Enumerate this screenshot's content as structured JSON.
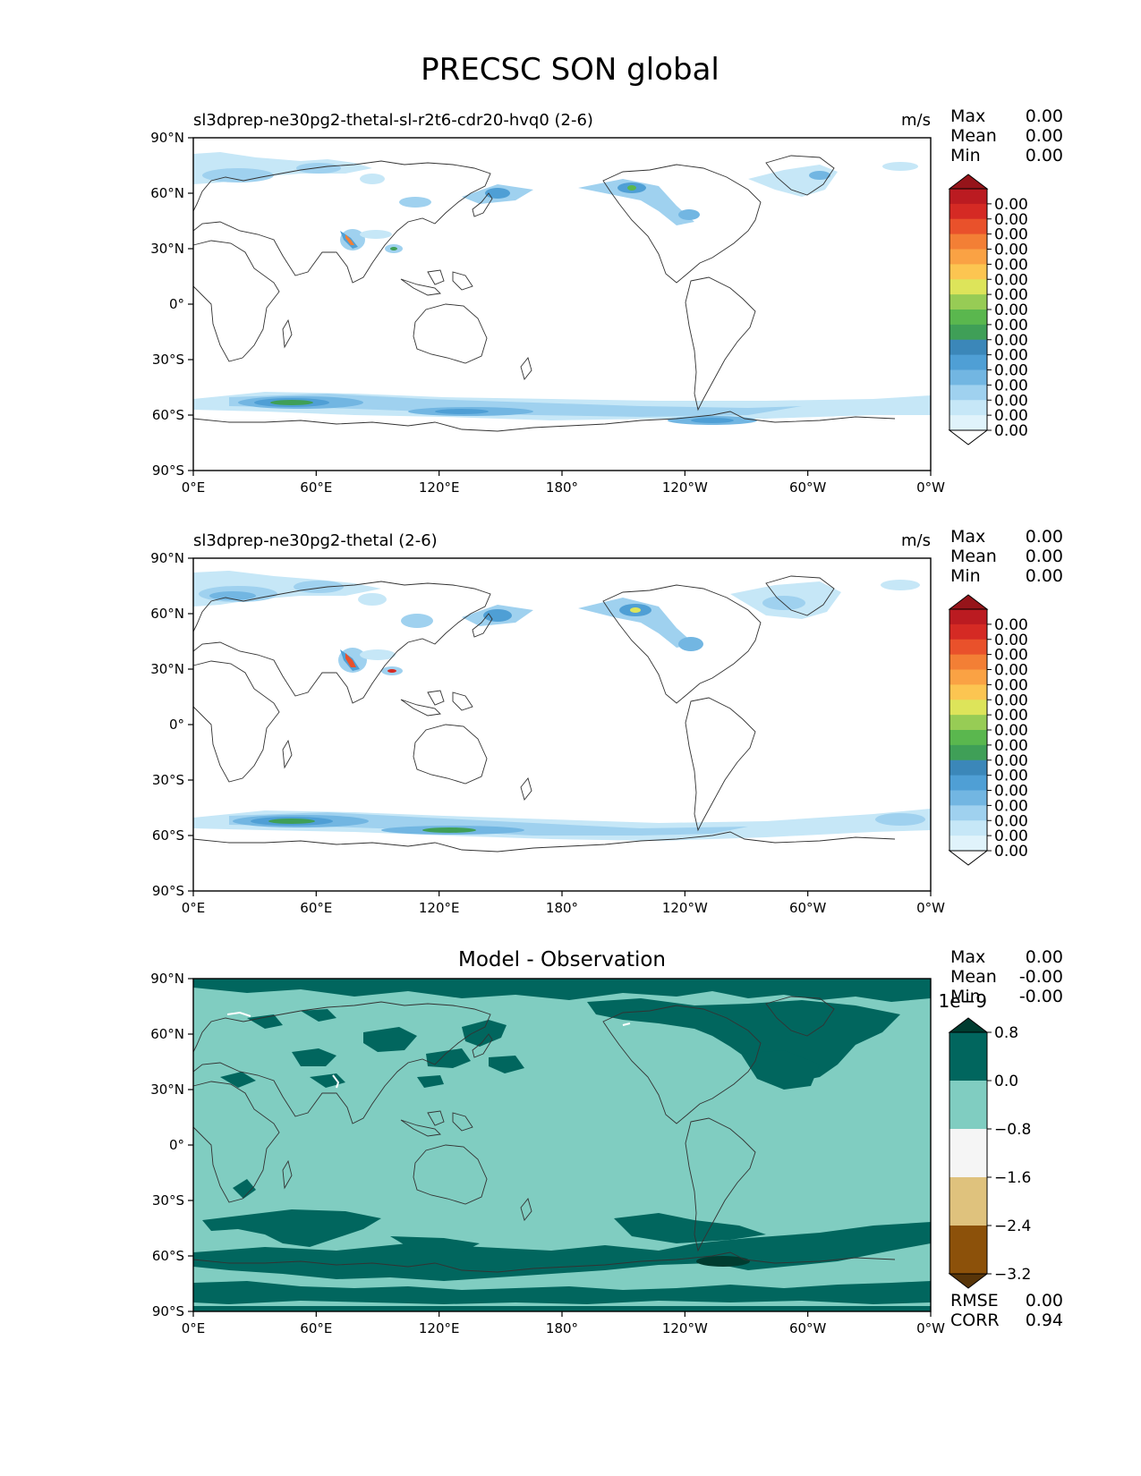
{
  "figure": {
    "title": "PRECSC SON global"
  },
  "axes": {
    "lon_ticks": [
      "0°E",
      "60°E",
      "120°E",
      "180°",
      "120°W",
      "60°W",
      "0°W"
    ],
    "lat_ticks": [
      "90°N",
      "60°N",
      "30°N",
      "0°",
      "30°S",
      "60°S",
      "90°S"
    ]
  },
  "panels": [
    {
      "title": "sl3dprep-ne30pg2-thetal-sl-r2t6-cdr20-hvq0 (2-6)",
      "units": "m/s",
      "stats": [
        {
          "label": "Max",
          "value": "0.00"
        },
        {
          "label": "Mean",
          "value": "0.00"
        },
        {
          "label": "Min",
          "value": "0.00"
        }
      ],
      "colorbar": {
        "colors": [
          "#ffffff",
          "#e0f3fb",
          "#c6e7f7",
          "#9fd1ef",
          "#72b6e2",
          "#4f9fd5",
          "#3b87b9",
          "#3f9f57",
          "#5ab74e",
          "#97cc55",
          "#dde45a",
          "#fcc551",
          "#faa244",
          "#f37f35",
          "#e9512b",
          "#d52a24",
          "#bb1b21",
          "#96141a"
        ],
        "labels": [
          "0.00",
          "0.00",
          "0.00",
          "0.00",
          "0.00",
          "0.00",
          "0.00",
          "0.00",
          "0.00",
          "0.00",
          "0.00",
          "0.00",
          "0.00",
          "0.00",
          "0.00",
          "0.00"
        ]
      }
    },
    {
      "title": "sl3dprep-ne30pg2-thetal (2-6)",
      "units": "m/s",
      "stats": [
        {
          "label": "Max",
          "value": "0.00"
        },
        {
          "label": "Mean",
          "value": "0.00"
        },
        {
          "label": "Min",
          "value": "0.00"
        }
      ],
      "colorbar": {
        "colors": [
          "#ffffff",
          "#e0f3fb",
          "#c6e7f7",
          "#9fd1ef",
          "#72b6e2",
          "#4f9fd5",
          "#3b87b9",
          "#3f9f57",
          "#5ab74e",
          "#97cc55",
          "#dde45a",
          "#fcc551",
          "#faa244",
          "#f37f35",
          "#e9512b",
          "#d52a24",
          "#bb1b21",
          "#96141a"
        ],
        "labels": [
          "0.00",
          "0.00",
          "0.00",
          "0.00",
          "0.00",
          "0.00",
          "0.00",
          "0.00",
          "0.00",
          "0.00",
          "0.00",
          "0.00",
          "0.00",
          "0.00",
          "0.00",
          "0.00"
        ]
      }
    },
    {
      "title": "Model - Observation",
      "units": "",
      "stats": [
        {
          "label": "Max",
          "value": "0.00"
        },
        {
          "label": "Mean",
          "value": "-0.00"
        },
        {
          "label": "Min",
          "value": "-0.00"
        }
      ],
      "colorbar": {
        "multiplier": "1e−9",
        "colors": [
          "#583509",
          "#8c510a",
          "#dfc27d",
          "#f5f5f5",
          "#80cdc1",
          "#01665e",
          "#003c30"
        ],
        "labels": [
          "0.8",
          "0.0",
          "−0.8",
          "−1.6",
          "−2.4",
          "−3.2"
        ]
      },
      "extra_stats": [
        {
          "label": "RMSE",
          "value": "0.00"
        },
        {
          "label": "CORR",
          "value": "0.94"
        }
      ]
    }
  ]
}
